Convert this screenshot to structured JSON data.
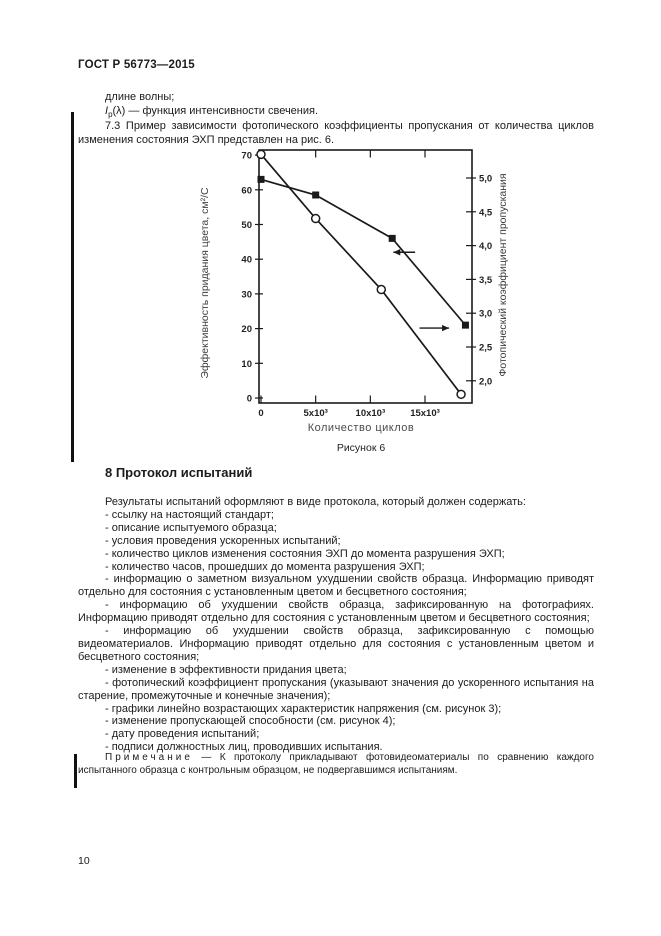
{
  "page": {
    "header": "ГОСТ Р 56773—2015",
    "page_number": "10"
  },
  "intro": {
    "line1": "длине волны;",
    "formula_var": "I",
    "formula_sub": "p",
    "formula_rest": "(λ) — функция интенсивности свечения.",
    "para_73": "7.3 Пример зависимости фотопического коэффициенты пропускания от количества циклов изменения состояния ЭХП представлен на рис. 6."
  },
  "chart_data": {
    "type": "line",
    "caption": "Рисунок 6",
    "xlabel": "Количество циклов",
    "left_axis": {
      "label": "Эффективность придания цвета, см²/С",
      "ticks": [
        0,
        10,
        20,
        30,
        40,
        50,
        60,
        70
      ],
      "range": [
        0,
        71.5
      ]
    },
    "right_axis": {
      "label": "Фотопический коэффициент пропускания",
      "ticks": [
        {
          "v": 5.0,
          "t": "5,0"
        },
        {
          "v": 4.5,
          "t": "4,5"
        },
        {
          "v": 4.0,
          "t": "4,0"
        },
        {
          "v": 3.5,
          "t": "3,5"
        },
        {
          "v": 3.0,
          "t": "3,0"
        },
        {
          "v": 2.5,
          "t": "2,5"
        },
        {
          "v": 2.0,
          "t": "2,0"
        }
      ],
      "range": [
        1.67,
        5.41
      ]
    },
    "x_axis": {
      "ticks": [
        {
          "v": 0,
          "t": "0"
        },
        {
          "v": 5000,
          "t": "5x10³"
        },
        {
          "v": 10000,
          "t": "10x10³"
        },
        {
          "v": 15000,
          "t": "15x10³"
        }
      ],
      "range": [
        0,
        19300
      ]
    },
    "series": [
      {
        "name": "Эффективность придания цвета (квадраты, левая ось)",
        "axis": "left",
        "marker": "square",
        "points": [
          [
            0,
            63
          ],
          [
            5000,
            58.5
          ],
          [
            12000,
            46
          ],
          [
            18700,
            21
          ]
        ]
      },
      {
        "name": "Фотопический коэффициент пропускания (окружности, правая ось)",
        "axis": "right",
        "marker": "circle",
        "points": [
          [
            0,
            5.35
          ],
          [
            5000,
            4.4
          ],
          [
            11000,
            3.35
          ],
          [
            18300,
            1.8
          ]
        ]
      }
    ],
    "annotations": [
      {
        "type": "arrow",
        "axis": "left",
        "y": 42,
        "x_tail": 14100,
        "x_head": 12100,
        "points_to": "left-axis"
      },
      {
        "type": "arrow",
        "axis": "right",
        "y": 2.78,
        "x_tail": 14500,
        "x_head": 17200,
        "points_to": "right-axis"
      }
    ],
    "line_color": "#1a1a1a",
    "grid": false,
    "legend": "none"
  },
  "section8": {
    "heading": "8 Протокол испытаний",
    "items": [
      "Результаты испытаний оформляют в виде протокола, который должен содержать:",
      "- ссылку на настоящий стандарт;",
      "- описание испытуемого образца;",
      "- условия проведения ускоренных испытаний;",
      "- количество циклов изменения состояния ЭХП до момента разрушения ЭХП;",
      "- количество часов, прошедших до момента разрушения ЭХП;",
      "- информацию о заметном визуальном ухудшении свойств образца. Информацию приводят отдельно для состояния с установленным цветом и бесцветного состояния;",
      "- информацию об ухудшении свойств образца, зафиксированную на фотографиях. Информацию приводят отдельно для состояния с установленным цветом и бесцветного состояния;",
      "- информацию об ухудшении свойств образца, зафиксированную с помощью видеоматериалов. Информацию приводят отдельно для состояния с установленным цветом и бесцветного состояния;",
      "- изменение в эффективности придания цвета;",
      "- фотопический коэффициент пропускания (указывают значения до ускоренного испытания на старение, промежуточные и конечные значения);",
      "- графики линейно возрастающих характеристик напряжения (см. рисунок 3);",
      "- изменение пропускающей способности (см. рисунок 4);",
      "- дату проведения испытаний;",
      "- подписи должностных лиц, проводивших испытания."
    ],
    "note_label": "Примечание",
    "note_text": " — К протоколу прикладывают фотовидеоматериалы по сравнению каждого испытанного образца с контрольным образцом, не подвергавшимся испытаниям."
  }
}
